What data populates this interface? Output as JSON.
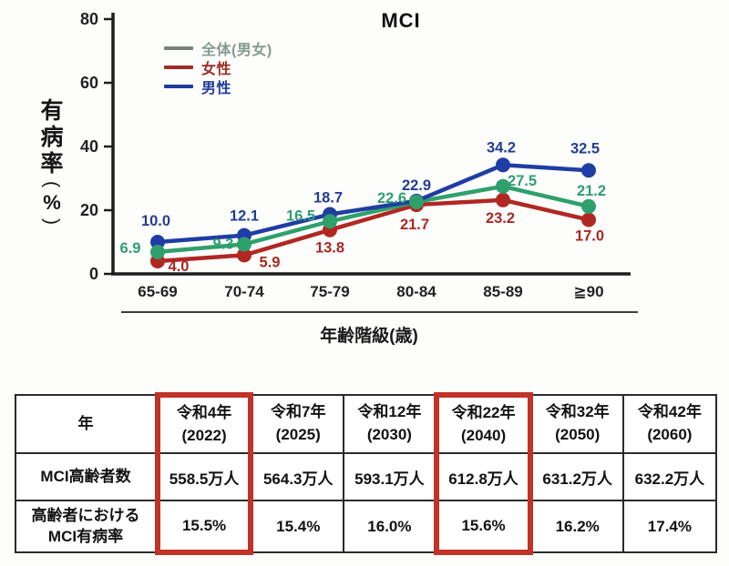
{
  "chart_data": {
    "type": "line",
    "title": "MCI",
    "xlabel": "年齢階級(歳)",
    "ylabel": "有病率(%)",
    "ylim": [
      0,
      80
    ],
    "y_ticks": [
      0,
      20,
      40,
      60,
      80
    ],
    "grid": false,
    "categories": [
      "65-69",
      "70-74",
      "75-79",
      "80-84",
      "85-89",
      "≧90"
    ],
    "legend": {
      "position": "top-left-inside",
      "entries": [
        {
          "label": "全体(男女)",
          "swatch_color": "#76807d",
          "text_color": "#839b8d"
        },
        {
          "label": "女性",
          "swatch_color": "#9c2d26",
          "text_color": "#9c2d26"
        },
        {
          "label": "男性",
          "swatch_color": "#1e3c9c",
          "text_color": "#1e3c9c"
        }
      ]
    },
    "series": [
      {
        "name": "全体(男女)",
        "color": "#2ea06c",
        "label_color": "#2f9e70",
        "values": [
          6.9,
          9.3,
          16.5,
          22.6,
          27.5,
          21.2
        ]
      },
      {
        "name": "女性",
        "color": "#b02822",
        "label_color": "#a82a22",
        "values": [
          4.0,
          5.9,
          13.8,
          21.7,
          23.2,
          17.0
        ]
      },
      {
        "name": "男性",
        "color": "#1f3da4",
        "label_color": "#243c94",
        "values": [
          10.0,
          12.1,
          18.7,
          22.9,
          34.2,
          32.5
        ]
      }
    ]
  },
  "table": {
    "row_header": "年",
    "highlight_color": "#c13227",
    "columns": [
      {
        "era": "令和4年",
        "year": "(2022)",
        "highlight": true
      },
      {
        "era": "令和7年",
        "year": "(2025)",
        "highlight": false
      },
      {
        "era": "令和12年",
        "year": "(2030)",
        "highlight": false
      },
      {
        "era": "令和22年",
        "year": "(2040)",
        "highlight": true
      },
      {
        "era": "令和32年",
        "year": "(2050)",
        "highlight": false
      },
      {
        "era": "令和42年",
        "year": "(2060)",
        "highlight": false
      }
    ],
    "rows": [
      {
        "label": "MCI高齢者数",
        "values": [
          "558.5万人",
          "564.3万人",
          "593.1万人",
          "612.8万人",
          "631.2万人",
          "632.2万人"
        ]
      },
      {
        "label": "高齢者における\nMCI有病率",
        "values": [
          "15.5%",
          "15.4%",
          "16.0%",
          "15.6%",
          "16.2%",
          "17.4%"
        ]
      }
    ]
  }
}
